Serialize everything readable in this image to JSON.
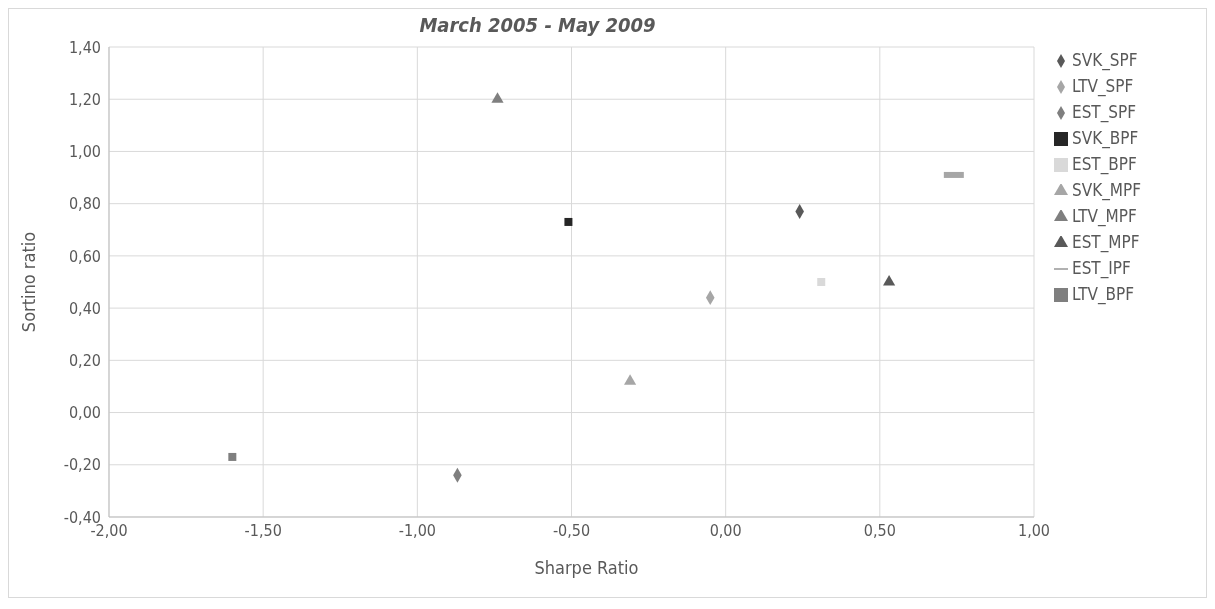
{
  "chart_data": {
    "type": "scatter",
    "title": "March 2005 - May 2009",
    "xlabel": "Sharpe Ratio",
    "ylabel": "Sortino ratio",
    "xlim": [
      -2,
      1
    ],
    "xticks": [
      {
        "value": -2,
        "label": "-2,00"
      },
      {
        "value": -1.5,
        "label": "-1,50"
      },
      {
        "value": -1,
        "label": "-1,00"
      },
      {
        "value": -0.5,
        "label": "-0,50"
      },
      {
        "value": 0,
        "label": "0,00"
      },
      {
        "value": 0.5,
        "label": "0,50"
      },
      {
        "value": 1,
        "label": "1,00"
      }
    ],
    "ylim": [
      -0.4,
      1.4
    ],
    "yticks": [
      {
        "value": -0.4,
        "label": "-0,40"
      },
      {
        "value": -0.2,
        "label": "-0,20"
      },
      {
        "value": 0,
        "label": "0,00"
      },
      {
        "value": 0.2,
        "label": "0,20"
      },
      {
        "value": 0.4,
        "label": "0,40"
      },
      {
        "value": 0.6,
        "label": "0,60"
      },
      {
        "value": 0.8,
        "label": "0,80"
      },
      {
        "value": 1,
        "label": "1,00"
      },
      {
        "value": 1.2,
        "label": "1,20"
      },
      {
        "value": 1.4,
        "label": "1,40"
      }
    ],
    "grid": true,
    "legend": "right",
    "series": [
      {
        "name": "SVK_SPF",
        "color": "#595959",
        "marker": "diamond",
        "x": [
          0.24
        ],
        "values": [
          0.77
        ]
      },
      {
        "name": "LTV_SPF",
        "color": "#a6a6a6",
        "marker": "diamond",
        "x": [
          -0.05
        ],
        "values": [
          0.44
        ]
      },
      {
        "name": "EST_SPF",
        "color": "#7f7f7f",
        "marker": "diamond",
        "x": [
          -0.87
        ],
        "values": [
          -0.24
        ]
      },
      {
        "name": "SVK_BPF",
        "color": "#262626",
        "marker": "square",
        "x": [
          -0.51
        ],
        "values": [
          0.73
        ]
      },
      {
        "name": "EST_BPF",
        "color": "#d9d9d9",
        "marker": "square",
        "x": [
          0.31
        ],
        "values": [
          0.5
        ]
      },
      {
        "name": "SVK_MPF",
        "color": "#a6a6a6",
        "marker": "triangle",
        "x": [
          -0.31
        ],
        "values": [
          0.12
        ]
      },
      {
        "name": "LTV_MPF",
        "color": "#7f7f7f",
        "marker": "triangle",
        "x": [
          -0.74
        ],
        "values": [
          1.2
        ]
      },
      {
        "name": "EST_MPF",
        "color": "#595959",
        "marker": "triangle",
        "x": [
          0.53
        ],
        "values": [
          0.5
        ]
      },
      {
        "name": "EST_IPF",
        "color": "#a6a6a6",
        "x": [
          0.74
        ],
        "values": [
          0.91
        ]
      },
      {
        "name": "LTV_BPF",
        "color": "#7f7f7f",
        "marker": "square",
        "x": [
          -1.6
        ],
        "values": [
          -0.17
        ]
      }
    ]
  }
}
